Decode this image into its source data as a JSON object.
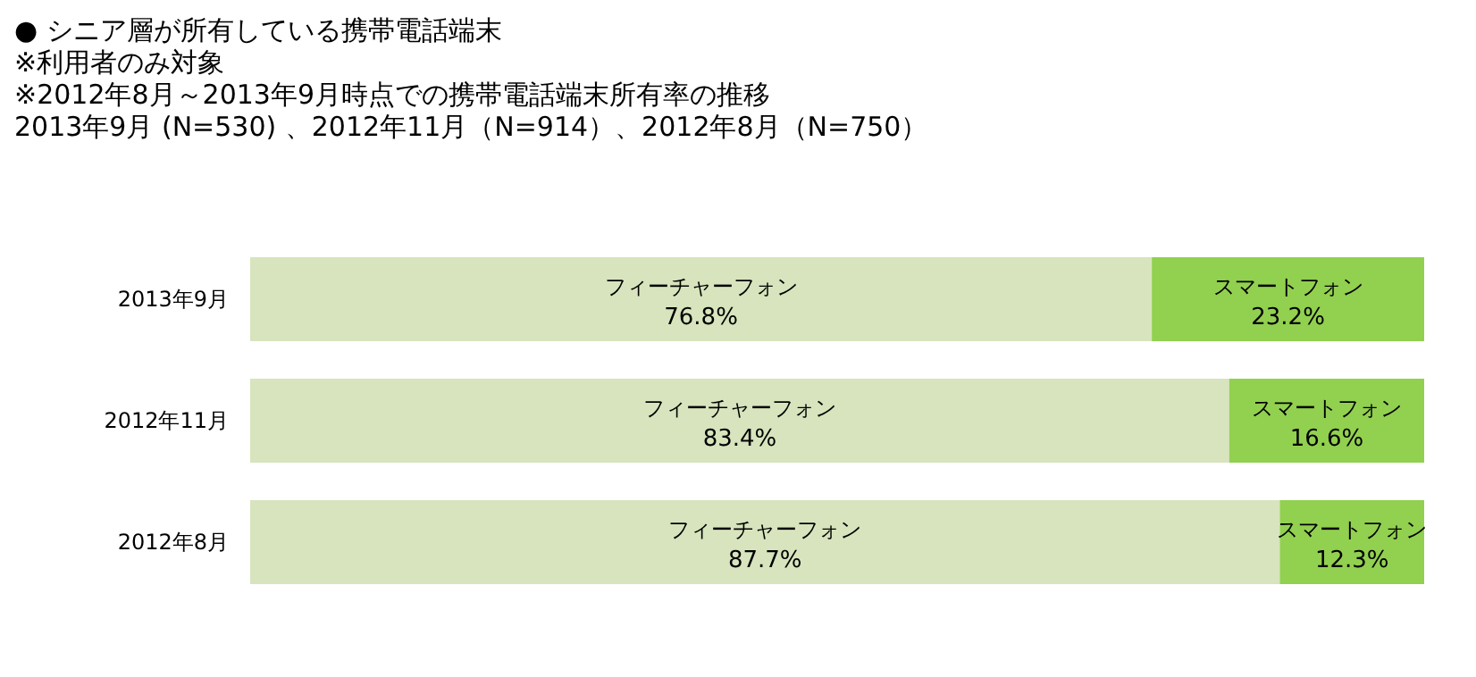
{
  "chart_data": {
    "type": "bar",
    "title": "● シニア層が所有している携帯電話端末",
    "subtitle": "※利用者のみ対象\n※2012年8月～2013年9月時点での携帯電話端末所有率の推移\n2013年9月 (N=530) 、2012年11月（N=914）、2012年8月（N=750）",
    "categories": [
      "2013年9月",
      "2012年11月",
      "2012年8月"
    ],
    "stacked": true,
    "orientation": "horizontal",
    "xlim": [
      0,
      100
    ],
    "series": [
      {
        "name": "フィーチャーフォン",
        "color": "#d7e4bd",
        "values": [
          76.8,
          83.4,
          87.7
        ],
        "value_labels": [
          "76.8%",
          "83.4%",
          "87.7%"
        ]
      },
      {
        "name": "スマートフォン",
        "color": "#92d050",
        "values": [
          23.2,
          16.6,
          12.3
        ],
        "value_labels": [
          "23.2%",
          "16.6%",
          "12.3%"
        ]
      }
    ]
  }
}
